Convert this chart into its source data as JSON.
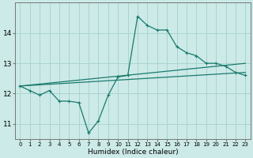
{
  "xlabel": "Humidex (Indice chaleur)",
  "background_color": "#cceae7",
  "grid_color": "#aad4d0",
  "line_color": "#1a7a6e",
  "x_ticks": [
    0,
    1,
    2,
    3,
    4,
    5,
    6,
    7,
    8,
    9,
    10,
    11,
    12,
    13,
    14,
    15,
    16,
    17,
    18,
    19,
    20,
    21,
    22,
    23
  ],
  "y_ticks": [
    11,
    12,
    13,
    14
  ],
  "ylim": [
    10.5,
    15.0
  ],
  "xlim": [
    -0.5,
    23.5
  ],
  "line1_x": [
    0,
    1,
    2,
    3,
    4,
    5,
    6,
    7,
    8,
    9,
    10,
    11,
    12,
    13,
    14,
    15,
    16,
    17,
    18,
    19,
    20,
    21,
    22,
    23
  ],
  "line1_y": [
    12.25,
    12.1,
    11.95,
    12.1,
    11.75,
    11.75,
    11.7,
    10.7,
    11.1,
    11.95,
    12.55,
    12.6,
    14.55,
    14.25,
    14.1,
    14.1,
    13.55,
    13.35,
    13.25,
    13.0,
    13.0,
    12.9,
    12.7,
    12.6
  ],
  "line2_x": [
    0,
    23
  ],
  "line2_y": [
    12.25,
    12.7
  ],
  "line3_x": [
    0,
    23
  ],
  "line3_y": [
    12.25,
    13.0
  ]
}
